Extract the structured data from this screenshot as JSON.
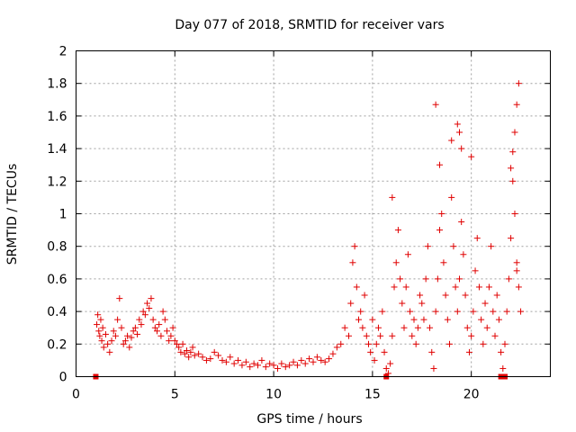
{
  "chart_data": {
    "type": "scatter",
    "title": "Day 077 of 2018, SRMTID for receiver vars",
    "xlabel": "GPS time / hours",
    "ylabel": "SRMTID / TECUs",
    "xlim": [
      0,
      24
    ],
    "ylim": [
      0,
      2
    ],
    "xticks": [
      0,
      5,
      10,
      15,
      20
    ],
    "xtick_labels": [
      "0",
      "5",
      "10",
      "15",
      "20"
    ],
    "yticks": [
      0,
      0.2,
      0.4,
      0.6,
      0.8,
      1.0,
      1.2,
      1.4,
      1.6,
      1.8,
      2.0
    ],
    "ytick_labels": [
      "0",
      "0.2",
      "0.4",
      "0.6",
      "0.8",
      "1",
      "1.2",
      "1.4",
      "1.6",
      "1.8",
      "2"
    ],
    "grid": true,
    "marker": "plus",
    "color": "#e00000",
    "series": [
      {
        "name": "SRMTID",
        "x": [
          1.05,
          1.1,
          1.15,
          1.2,
          1.25,
          1.3,
          1.35,
          1.4,
          1.5,
          1.6,
          1.7,
          1.8,
          1.9,
          2.0,
          2.1,
          2.2,
          2.3,
          2.4,
          2.5,
          2.6,
          2.7,
          2.8,
          2.9,
          3.0,
          3.1,
          3.2,
          3.3,
          3.4,
          3.5,
          3.6,
          3.7,
          3.8,
          3.9,
          4.0,
          4.1,
          4.2,
          4.3,
          4.4,
          4.5,
          4.6,
          4.7,
          4.8,
          4.9,
          5.0,
          5.1,
          5.2,
          5.3,
          5.4,
          5.5,
          5.6,
          5.7,
          5.8,
          5.9,
          6.0,
          6.2,
          6.4,
          6.6,
          6.8,
          7.0,
          7.2,
          7.4,
          7.6,
          7.8,
          8.0,
          8.2,
          8.4,
          8.6,
          8.8,
          9.0,
          9.2,
          9.4,
          9.6,
          9.8,
          10.0,
          10.2,
          10.4,
          10.6,
          10.8,
          11.0,
          11.2,
          11.4,
          11.6,
          11.8,
          12.0,
          12.2,
          12.4,
          12.6,
          12.8,
          13.0,
          13.2,
          13.4,
          13.6,
          13.8,
          13.9,
          14.0,
          14.1,
          14.2,
          14.3,
          14.4,
          14.5,
          14.6,
          14.7,
          14.8,
          14.9,
          15.0,
          15.1,
          15.2,
          15.3,
          15.4,
          15.5,
          15.6,
          15.7,
          15.8,
          15.9,
          16.0,
          16.1,
          16.2,
          16.3,
          16.4,
          16.5,
          16.6,
          16.7,
          16.8,
          16.9,
          17.0,
          17.1,
          17.2,
          17.3,
          17.4,
          17.5,
          17.6,
          17.7,
          17.8,
          17.9,
          18.0,
          18.1,
          18.2,
          18.3,
          18.4,
          18.5,
          18.6,
          18.7,
          18.8,
          18.9,
          19.0,
          19.1,
          19.2,
          19.3,
          19.4,
          19.5,
          19.6,
          19.7,
          19.8,
          19.9,
          20.0,
          20.1,
          20.2,
          20.3,
          20.4,
          20.5,
          20.6,
          20.7,
          20.8,
          20.9,
          21.0,
          21.1,
          21.2,
          21.3,
          21.4,
          21.5,
          21.6,
          21.7,
          21.8,
          21.9,
          22.0,
          22.1,
          22.2,
          22.3,
          22.4,
          22.5,
          22.0,
          22.2,
          22.3,
          22.4,
          18.2,
          19.3,
          19.4,
          19.5,
          18.4,
          16.0,
          19.0,
          20.0,
          22.1,
          22.3
        ],
        "y": [
          0.32,
          0.38,
          0.28,
          0.25,
          0.35,
          0.22,
          0.3,
          0.18,
          0.26,
          0.2,
          0.15,
          0.22,
          0.28,
          0.25,
          0.35,
          0.48,
          0.3,
          0.2,
          0.22,
          0.25,
          0.18,
          0.24,
          0.28,
          0.3,
          0.26,
          0.35,
          0.32,
          0.4,
          0.38,
          0.45,
          0.42,
          0.48,
          0.35,
          0.3,
          0.28,
          0.32,
          0.25,
          0.4,
          0.35,
          0.28,
          0.22,
          0.25,
          0.3,
          0.22,
          0.2,
          0.18,
          0.15,
          0.2,
          0.14,
          0.16,
          0.12,
          0.15,
          0.18,
          0.13,
          0.14,
          0.12,
          0.1,
          0.11,
          0.15,
          0.13,
          0.1,
          0.09,
          0.12,
          0.08,
          0.1,
          0.07,
          0.09,
          0.06,
          0.08,
          0.07,
          0.1,
          0.06,
          0.08,
          0.07,
          0.05,
          0.08,
          0.06,
          0.07,
          0.09,
          0.07,
          0.1,
          0.08,
          0.11,
          0.09,
          0.12,
          0.1,
          0.09,
          0.11,
          0.14,
          0.18,
          0.2,
          0.3,
          0.25,
          0.45,
          0.7,
          0.8,
          0.55,
          0.35,
          0.4,
          0.3,
          0.5,
          0.25,
          0.2,
          0.15,
          0.35,
          0.1,
          0.2,
          0.3,
          0.25,
          0.4,
          0.15,
          0.05,
          0.02,
          0.08,
          0.25,
          0.55,
          0.7,
          0.9,
          0.6,
          0.45,
          0.3,
          0.55,
          0.75,
          0.4,
          0.25,
          0.35,
          0.2,
          0.3,
          0.5,
          0.45,
          0.35,
          0.6,
          0.8,
          0.3,
          0.15,
          0.05,
          0.4,
          0.6,
          0.9,
          1.0,
          0.7,
          0.5,
          0.35,
          0.2,
          1.1,
          0.8,
          0.55,
          0.4,
          0.6,
          0.95,
          0.75,
          0.5,
          0.3,
          0.15,
          0.25,
          0.4,
          0.65,
          0.85,
          0.55,
          0.35,
          0.2,
          0.45,
          0.3,
          0.55,
          0.8,
          0.4,
          0.25,
          0.5,
          0.35,
          0.15,
          0.05,
          0.2,
          0.4,
          0.6,
          0.85,
          1.2,
          1.0,
          0.7,
          0.55,
          0.4,
          1.28,
          1.5,
          1.67,
          1.8,
          1.67,
          1.55,
          1.5,
          1.4,
          1.3,
          1.1,
          1.45,
          1.35,
          1.38,
          0.65
        ],
        "zero_markers_x": [
          1.0,
          15.7,
          21.5,
          21.7
        ]
      }
    ]
  }
}
